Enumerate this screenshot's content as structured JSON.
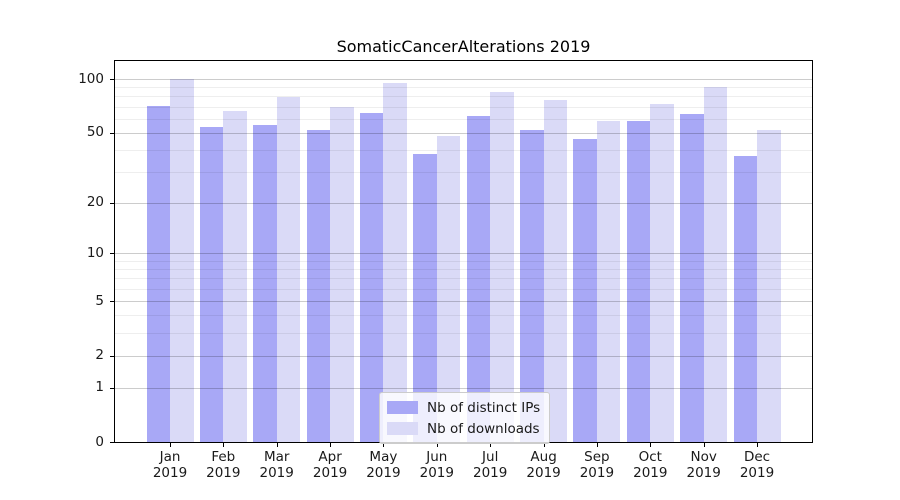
{
  "chart_data": {
    "type": "bar",
    "title": "SomaticCancerAlterations 2019",
    "year": "2019",
    "categories": [
      "Jan",
      "Feb",
      "Mar",
      "Apr",
      "May",
      "Jun",
      "Jul",
      "Aug",
      "Sep",
      "Oct",
      "Nov",
      "Dec"
    ],
    "series": [
      {
        "name": "Nb of distinct IPs",
        "color": "#a8a8f6",
        "values": [
          71,
          54,
          55,
          52,
          65,
          38,
          62,
          52,
          46,
          58,
          64,
          37
        ]
      },
      {
        "name": "Nb of downloads",
        "color": "#dadaf7",
        "values": [
          100,
          66,
          79,
          70,
          95,
          48,
          85,
          76,
          58,
          73,
          90,
          52
        ]
      }
    ],
    "xlabel": "",
    "ylabel": "",
    "yscale": "log1p",
    "yticks": [
      100,
      50,
      20,
      10,
      5,
      2,
      1,
      0
    ],
    "minor_yticks": [
      3,
      4,
      6,
      7,
      8,
      9,
      30,
      40,
      60,
      70,
      80,
      90
    ],
    "ylim": [
      0,
      126
    ],
    "xlim": [
      -1.03,
      12.03
    ],
    "bar_half_width_units": 0.44,
    "grid": true,
    "legend_position": "lower center"
  }
}
